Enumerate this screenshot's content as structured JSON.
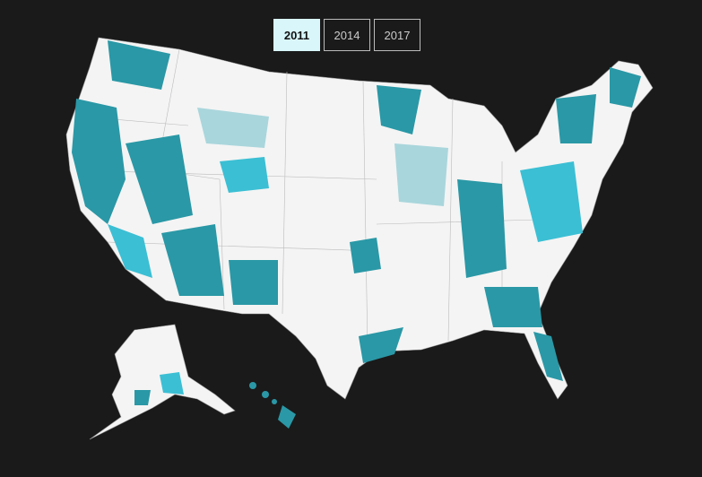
{
  "year_selector": {
    "buttons": [
      {
        "label": "2011",
        "selected": true
      },
      {
        "label": "2014",
        "selected": false
      },
      {
        "label": "2017",
        "selected": false
      }
    ]
  }
}
